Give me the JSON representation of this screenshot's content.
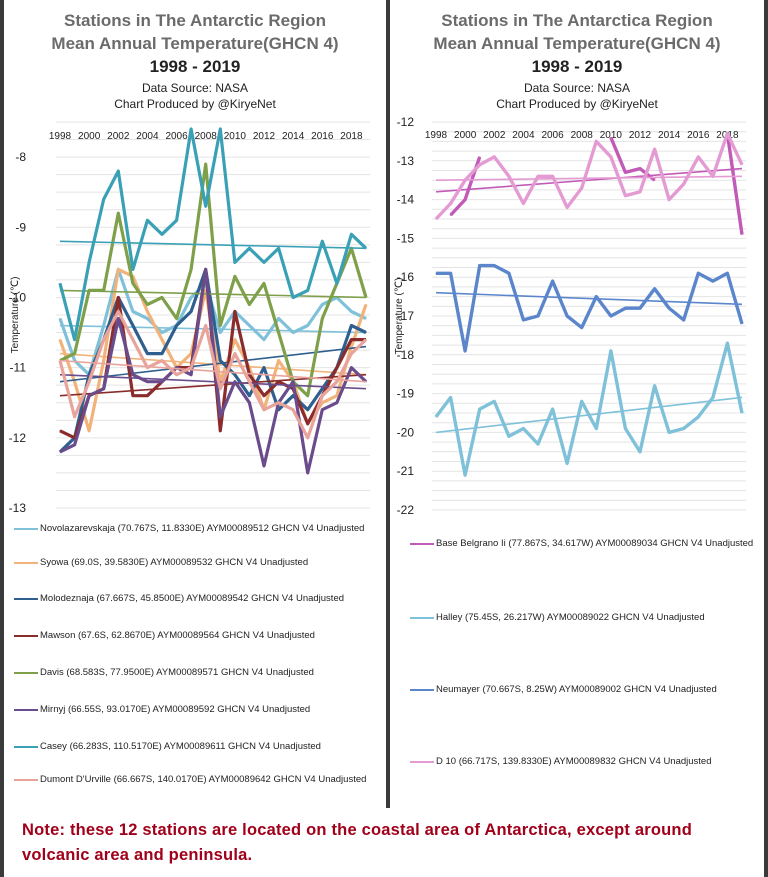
{
  "left_panel": {
    "title_line1": "Stations in The Antarctic Region",
    "title_line2": "Mean Annual Temperature(GHCN 4)",
    "title_line3": "1998 - 2019",
    "source": "Data Source: NASA",
    "credit": "Chart Produced by @KiryeNet"
  },
  "right_panel": {
    "title_line1": "Stations in The Antarctica Region",
    "title_line2": "Mean Annual Temperature(GHCN 4)",
    "title_line3": "1998 - 2019",
    "source": "Data Source: NASA",
    "credit": "Chart Produced by @KiryeNet"
  },
  "note": "Note: these 12 stations are located on the coastal area of Antarctica, except around volcanic area and peninsula.",
  "chart_data": [
    {
      "type": "line",
      "ylabel": "Temperature (℃)",
      "ylim": [
        -13,
        -7.5
      ],
      "yticks": [
        "-8",
        "-9",
        "-10",
        "-11",
        "-12",
        "-13"
      ],
      "xtick_labels": [
        "1998",
        "2000",
        "2002",
        "2004",
        "2006",
        "2008",
        "2010",
        "2012",
        "2014",
        "2016",
        "2018"
      ],
      "x": [
        1998,
        1999,
        2000,
        2001,
        2002,
        2003,
        2004,
        2005,
        2006,
        2007,
        2008,
        2009,
        2010,
        2011,
        2012,
        2013,
        2014,
        2015,
        2016,
        2017,
        2018,
        2019
      ],
      "series": [
        {
          "name": "Novolazarevskaja (70.767S, 11.8330E) AYM00089512 GHCN V4 Unadjusted",
          "color": "#7fc1d9",
          "values": [
            -10.3,
            -10.9,
            -11.1,
            -10.4,
            -9.6,
            -10.2,
            -10.3,
            -10.5,
            -10.4,
            -10.0,
            -9.8,
            -10.5,
            -10.2,
            -10.4,
            -10.6,
            -10.3,
            -10.5,
            -10.4,
            -10.1,
            -10.0,
            -10.2,
            -10.3
          ],
          "trend": [
            -10.4,
            -10.5
          ]
        },
        {
          "name": "Syowa (69.0S, 39.5830E) AYM00089532 GHCN V4 Unadjusted",
          "color": "#f2b37a",
          "values": [
            -10.6,
            -11.2,
            -11.9,
            -10.9,
            -9.6,
            -9.7,
            -10.2,
            -10.6,
            -11.0,
            -10.8,
            -9.9,
            -11.2,
            -10.6,
            -11.0,
            -11.6,
            -10.9,
            -11.2,
            -11.8,
            -11.5,
            -11.4,
            -10.7,
            -10.1
          ],
          "trend": [
            -10.8,
            -11.1
          ]
        },
        {
          "name": "Molodeznaja (67.667S, 45.8500E) AYM00089542 GHCN V4 Unadjusted",
          "color": "#2f5f8f",
          "values": [
            -12.2,
            -12.0,
            -11.1,
            -10.6,
            -10.0,
            -10.4,
            -10.8,
            -10.8,
            -10.4,
            -10.2,
            -9.6,
            -10.9,
            -11.1,
            -11.4,
            -11.0,
            -11.6,
            -11.4,
            -11.6,
            -11.3,
            -11.0,
            -10.4,
            -10.5
          ],
          "trend": [
            -11.2,
            -10.7
          ]
        },
        {
          "name": "Mawson (67.6S, 62.8670E) AYM00089564 GHCN V4 Unadjusted",
          "color": "#8b2c2c",
          "values": [
            -11.9,
            -12.0,
            -11.4,
            -11.3,
            -10.0,
            -11.4,
            -11.4,
            -11.2,
            -11.0,
            -11.0,
            -9.6,
            -11.9,
            -10.2,
            -11.1,
            -11.4,
            -11.2,
            -11.3,
            -11.8,
            -11.4,
            -11.0,
            -10.6,
            -10.6
          ],
          "trend": [
            -11.4,
            -11.1
          ]
        },
        {
          "name": "Davis (68.583S, 77.9500E) AYM00089571 GHCN V4 Unadjusted",
          "color": "#7fa04a",
          "values": [
            -10.9,
            -10.8,
            -9.9,
            -9.9,
            -8.8,
            -9.8,
            -10.1,
            -10.0,
            -10.3,
            -9.6,
            -8.1,
            -10.4,
            -9.7,
            -10.1,
            -9.8,
            -10.5,
            -11.2,
            -11.4,
            -10.3,
            -9.8,
            -9.3,
            -10.0
          ],
          "trend": [
            -9.9,
            -10.0
          ]
        },
        {
          "name": "Mirnyj (66.55S, 93.0170E) AYM00089592 GHCN V4 Unadjusted",
          "color": "#6a4c8c",
          "values": [
            -12.2,
            -12.1,
            -11.4,
            -11.3,
            -10.3,
            -11.1,
            -11.2,
            -11.2,
            -11.0,
            -11.1,
            -9.6,
            -11.7,
            -11.2,
            -11.5,
            -12.4,
            -11.5,
            -11.2,
            -12.5,
            -11.6,
            -11.5,
            -11.0,
            -11.2
          ],
          "trend": [
            -11.1,
            -11.3
          ]
        },
        {
          "name": "Casey (66.283S, 110.5170E) AYM00089611 GHCN V4 Unadjusted",
          "color": "#3aa0b5",
          "values": [
            -9.8,
            -10.6,
            -9.5,
            -8.6,
            -8.2,
            -9.6,
            -8.9,
            -9.1,
            -8.9,
            -7.6,
            -8.7,
            -7.6,
            -9.5,
            -9.3,
            -9.5,
            -9.3,
            -10.0,
            -9.9,
            -9.2,
            -9.8,
            -9.1,
            -9.3
          ],
          "trend": [
            -9.2,
            -9.3
          ]
        },
        {
          "name": "Dumont D'Urville (66.667S, 140.0170E) AYM00089642 GHCN V4 Unadjusted",
          "color": "#e8a49b",
          "values": [
            -10.9,
            -11.7,
            -11.2,
            -10.6,
            -10.2,
            -10.6,
            -11.0,
            -10.9,
            -11.1,
            -11.0,
            -10.4,
            -11.3,
            -10.8,
            -11.2,
            -11.6,
            -11.5,
            -11.6,
            -12.0,
            -11.4,
            -11.2,
            -10.8,
            -10.6
          ],
          "trend": [
            -10.9,
            -11.2
          ]
        }
      ]
    },
    {
      "type": "line",
      "ylabel": "Temperature (℃)",
      "ylim": [
        -22,
        -12
      ],
      "yticks": [
        "-12",
        "-13",
        "-14",
        "-15",
        "-16",
        "-17",
        "-18",
        "-19",
        "-20",
        "-21",
        "-22"
      ],
      "xtick_labels": [
        "1998",
        "2000",
        "2002",
        "2004",
        "2006",
        "2008",
        "2010",
        "2012",
        "2014",
        "2016",
        "2018"
      ],
      "x": [
        1998,
        1999,
        2000,
        2001,
        2002,
        2003,
        2004,
        2005,
        2006,
        2007,
        2008,
        2009,
        2010,
        2011,
        2012,
        2013,
        2014,
        2015,
        2016,
        2017,
        2018,
        2019
      ],
      "series": [
        {
          "name": "Base Belgrano Ii (77.867S, 34.617W) AYM00089034 GHCN V4 Unadjusted",
          "color": "#c25ab8",
          "values": [
            null,
            -14.4,
            -14.0,
            -12.9,
            null,
            null,
            null,
            null,
            null,
            null,
            null,
            null,
            -12.4,
            -13.3,
            -13.2,
            -13.5,
            null,
            null,
            null,
            null,
            -12.3,
            -14.9
          ],
          "trend": [
            -13.8,
            -13.2
          ]
        },
        {
          "name": "Halley (75.45S, 26.217W) AYM00089022 GHCN V4 Unadjusted",
          "color": "#7fc1d9",
          "values": [
            -19.6,
            -19.1,
            -21.1,
            -19.4,
            -19.2,
            -20.1,
            -19.9,
            -20.3,
            -19.4,
            -20.8,
            -19.2,
            -19.9,
            -17.9,
            -19.9,
            -20.5,
            -18.8,
            -20.0,
            -19.9,
            -19.6,
            -19.1,
            -17.7,
            -19.5
          ],
          "trend": [
            -20.0,
            -19.1
          ]
        },
        {
          "name": "Neumayer (70.667S, 8.25W) AYM00089002 GHCN V4 Unadjusted",
          "color": "#5b86cc",
          "values": [
            -15.9,
            -15.9,
            -17.9,
            -15.7,
            -15.7,
            -15.9,
            -17.1,
            -17.0,
            -16.1,
            -17.0,
            -17.3,
            -16.5,
            -17.0,
            -16.8,
            -16.8,
            -16.3,
            -16.8,
            -17.1,
            -15.9,
            -16.1,
            -15.9,
            -17.2
          ],
          "trend": [
            -16.4,
            -16.7
          ]
        },
        {
          "name": "D 10 (66.717S, 139.8330E) AYM00089832 GHCN V4 Unadjusted",
          "color": "#e49bd3",
          "values": [
            -14.5,
            -14.1,
            -13.5,
            -13.1,
            -12.9,
            -13.4,
            -14.1,
            -13.4,
            -13.4,
            -14.2,
            -13.7,
            -12.5,
            -12.9,
            -13.9,
            -13.8,
            -12.7,
            -14.0,
            -13.6,
            -12.9,
            -13.4,
            -12.3,
            -13.1
          ],
          "trend": [
            -13.5,
            -13.4
          ]
        }
      ]
    }
  ]
}
